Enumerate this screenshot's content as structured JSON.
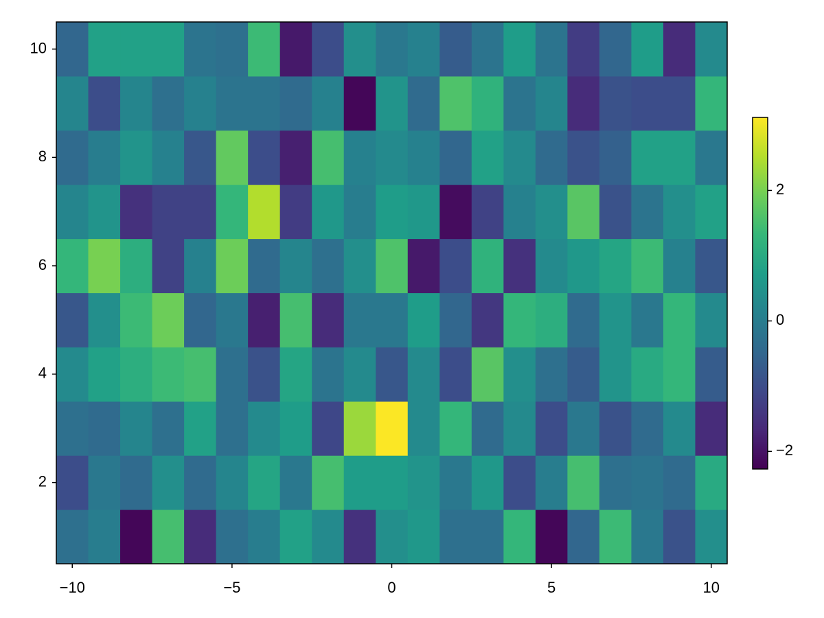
{
  "chart_data": {
    "type": "heatmap",
    "x": [
      -10,
      -9,
      -8,
      -7,
      -6,
      -5,
      -4,
      -3,
      -2,
      -1,
      0,
      1,
      2,
      3,
      4,
      5,
      6,
      7,
      8,
      9,
      10
    ],
    "y": [
      1,
      2,
      3,
      4,
      5,
      6,
      7,
      8,
      9,
      10
    ],
    "z": [
      [
        -0.3,
        0.0,
        -2.2,
        1.5,
        -1.6,
        -0.3,
        0.0,
        0.8,
        0.3,
        -1.5,
        0.4,
        0.6,
        -0.3,
        -0.3,
        1.3,
        -2.2,
        -0.5,
        1.4,
        -0.1,
        -0.9,
        0.4
      ],
      [
        -1.0,
        -0.1,
        -0.4,
        0.4,
        -0.4,
        0.2,
        0.9,
        -0.1,
        1.5,
        0.7,
        0.7,
        0.5,
        -0.1,
        0.6,
        -1.0,
        0.0,
        1.5,
        -0.3,
        -0.2,
        -0.4,
        1.0
      ],
      [
        -0.3,
        -0.4,
        0.2,
        -0.3,
        0.8,
        -0.3,
        0.3,
        0.7,
        -1.1,
        2.3,
        3.1,
        0.3,
        1.3,
        -0.4,
        0.3,
        -1.0,
        -0.1,
        -0.9,
        -0.4,
        0.3,
        -1.6
      ],
      [
        0.3,
        0.8,
        1.1,
        1.4,
        1.5,
        -0.3,
        -0.9,
        0.9,
        -0.2,
        0.3,
        -0.8,
        0.3,
        -1.0,
        1.7,
        0.4,
        -0.3,
        -0.7,
        0.5,
        1.0,
        1.3,
        -0.7
      ],
      [
        -0.8,
        0.4,
        1.4,
        1.9,
        -0.5,
        -0.1,
        -1.8,
        1.5,
        -1.6,
        -0.1,
        -0.1,
        0.7,
        -0.5,
        -1.4,
        1.3,
        1.1,
        -0.4,
        0.5,
        -0.1,
        1.3,
        0.3
      ],
      [
        1.3,
        2.0,
        1.1,
        -1.2,
        0.1,
        1.9,
        -0.4,
        0.2,
        -0.3,
        0.4,
        1.6,
        -1.9,
        -1.0,
        1.2,
        -1.5,
        0.3,
        0.6,
        0.9,
        1.4,
        0.1,
        -0.8
      ],
      [
        0.2,
        0.5,
        -1.5,
        -1.2,
        -1.2,
        1.3,
        2.5,
        -1.3,
        0.6,
        0.0,
        0.7,
        0.6,
        -2.1,
        -1.2,
        0.1,
        0.4,
        1.7,
        -0.9,
        -0.2,
        0.4,
        0.8
      ],
      [
        -0.4,
        0.0,
        0.5,
        0.1,
        -0.8,
        1.8,
        -1.0,
        -1.8,
        1.5,
        0.1,
        0.3,
        0.1,
        -0.5,
        0.8,
        0.3,
        -0.4,
        -0.9,
        -0.6,
        0.8,
        0.8,
        -0.1
      ],
      [
        0.2,
        -1.0,
        0.2,
        -0.3,
        0.1,
        -0.2,
        -0.2,
        -0.4,
        0.1,
        -2.2,
        0.5,
        -0.4,
        1.6,
        1.2,
        -0.2,
        0.2,
        -1.6,
        -0.9,
        -1.0,
        -1.0,
        1.3
      ],
      [
        -0.5,
        0.8,
        0.8,
        0.8,
        -0.2,
        -0.3,
        1.4,
        -1.9,
        -1.0,
        0.4,
        -0.1,
        0.1,
        -0.7,
        -0.2,
        0.7,
        -0.2,
        -1.3,
        -0.5,
        0.7,
        -1.6,
        0.3
      ]
    ],
    "xlim": [
      -10.5,
      10.5
    ],
    "ylim": [
      0.5,
      10.5
    ],
    "xticks": [
      {
        "value": -10,
        "label": "−10"
      },
      {
        "value": -5,
        "label": "−5"
      },
      0,
      5,
      10
    ],
    "yticks": [
      2,
      4,
      6,
      8,
      10
    ],
    "colormap": "viridis",
    "clim": [
      -2.27,
      3.12
    ],
    "cticks": [
      {
        "value": -2,
        "label": "−2"
      },
      0,
      2
    ]
  }
}
